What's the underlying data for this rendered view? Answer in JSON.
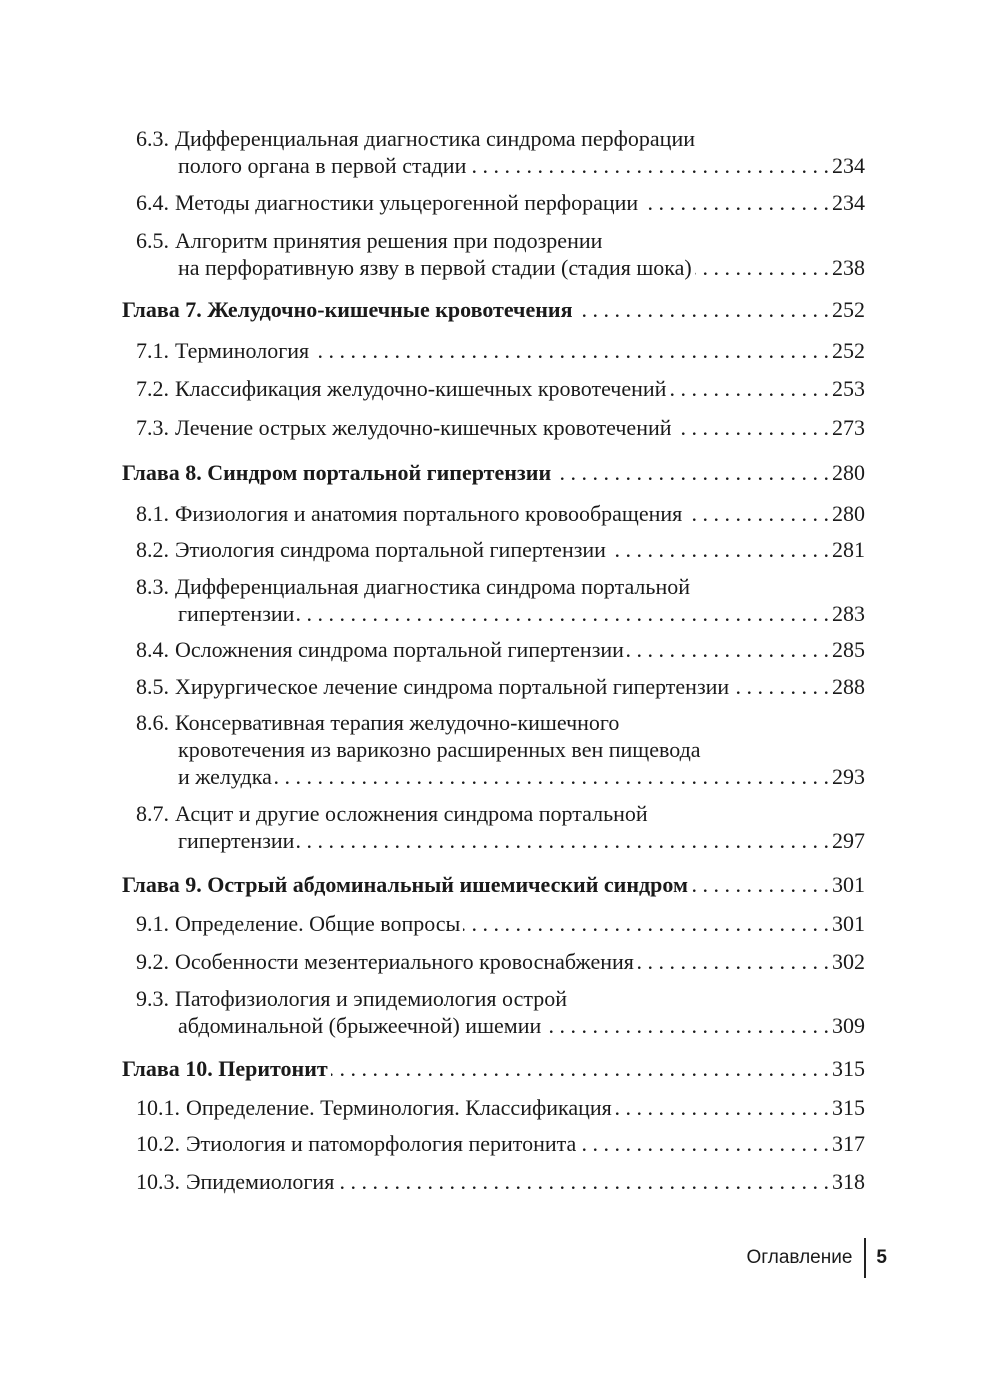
{
  "toc": [
    {
      "num": "6.3.",
      "lines": [
        "Дифференциальная диагностика синдрома перфорации",
        "полого органа в первой стадии"
      ],
      "page": "234"
    },
    {
      "num": "6.4.",
      "lines": [
        "Методы диагностики ульцерогенной перфорации"
      ],
      "page": "234"
    },
    {
      "num": "6.5.",
      "lines": [
        "Алгоритм принятия решения при подозрении",
        "на перфоративную язву в первой стадии (стадия шока)"
      ],
      "page": "238"
    },
    {
      "num": "",
      "lines": [
        "Глава 7. Желудочно-кишечные кровотечения"
      ],
      "page": "252"
    },
    {
      "num": "7.1.",
      "lines": [
        "Терминология"
      ],
      "page": "252"
    },
    {
      "num": "7.2.",
      "lines": [
        "Классификация желудочно-кишечных кровотечений"
      ],
      "page": "253"
    },
    {
      "num": "7.3.",
      "lines": [
        "Лечение острых желудочно-кишечных кровотечений"
      ],
      "page": "273"
    },
    {
      "num": "",
      "lines": [
        "Глава 8. Синдром портальной гипертензии"
      ],
      "page": "280"
    },
    {
      "num": "8.1.",
      "lines": [
        "Физиология и анатомия портального кровообращения"
      ],
      "page": "280"
    },
    {
      "num": "8.2.",
      "lines": [
        "Этиология синдрома портальной гипертензии"
      ],
      "page": "281"
    },
    {
      "num": "8.3.",
      "lines": [
        "Дифференциальная диагностика синдрома портальной",
        "гипертензии"
      ],
      "page": "283"
    },
    {
      "num": "8.4.",
      "lines": [
        "Осложнения синдрома портальной гипертензии"
      ],
      "page": "285"
    },
    {
      "num": "8.5.",
      "lines": [
        "Хирургическое лечение синдрома портальной гипертензии"
      ],
      "page": "288"
    },
    {
      "num": "8.6.",
      "lines": [
        "Консервативная терапия желудочно-кишечного",
        "кровотечения из варикозно расширенных вен пищевода",
        "и желудка"
      ],
      "page": "293"
    },
    {
      "num": "8.7.",
      "lines": [
        "Асцит и другие осложнения синдрома портальной",
        "гипертензии"
      ],
      "page": "297"
    },
    {
      "num": "",
      "lines": [
        "Глава 9. Острый абдоминальный ишемический синдром"
      ],
      "page": "301"
    },
    {
      "num": "9.1.",
      "lines": [
        "Определение. Общие вопросы"
      ],
      "page": "301"
    },
    {
      "num": "9.2.",
      "lines": [
        "Особенности мезентериального кровоснабжения"
      ],
      "page": "302"
    },
    {
      "num": "9.3.",
      "lines": [
        "Патофизиология и эпидемиология острой",
        "абдоминальной (брыжеечной) ишемии"
      ],
      "page": "309"
    },
    {
      "num": "",
      "lines": [
        "Глава 10. Перитонит"
      ],
      "page": "315"
    },
    {
      "num": "10.1.",
      "lines": [
        "Определение. Терминология. Классификация"
      ],
      "page": "315"
    },
    {
      "num": "10.2.",
      "lines": [
        "Этиология и патоморфология перитонита"
      ],
      "page": "317"
    },
    {
      "num": "10.3.",
      "lines": [
        "Эпидемиология"
      ],
      "page": "318"
    }
  ],
  "footer": {
    "section": "Оглавление",
    "page_number": "5"
  }
}
